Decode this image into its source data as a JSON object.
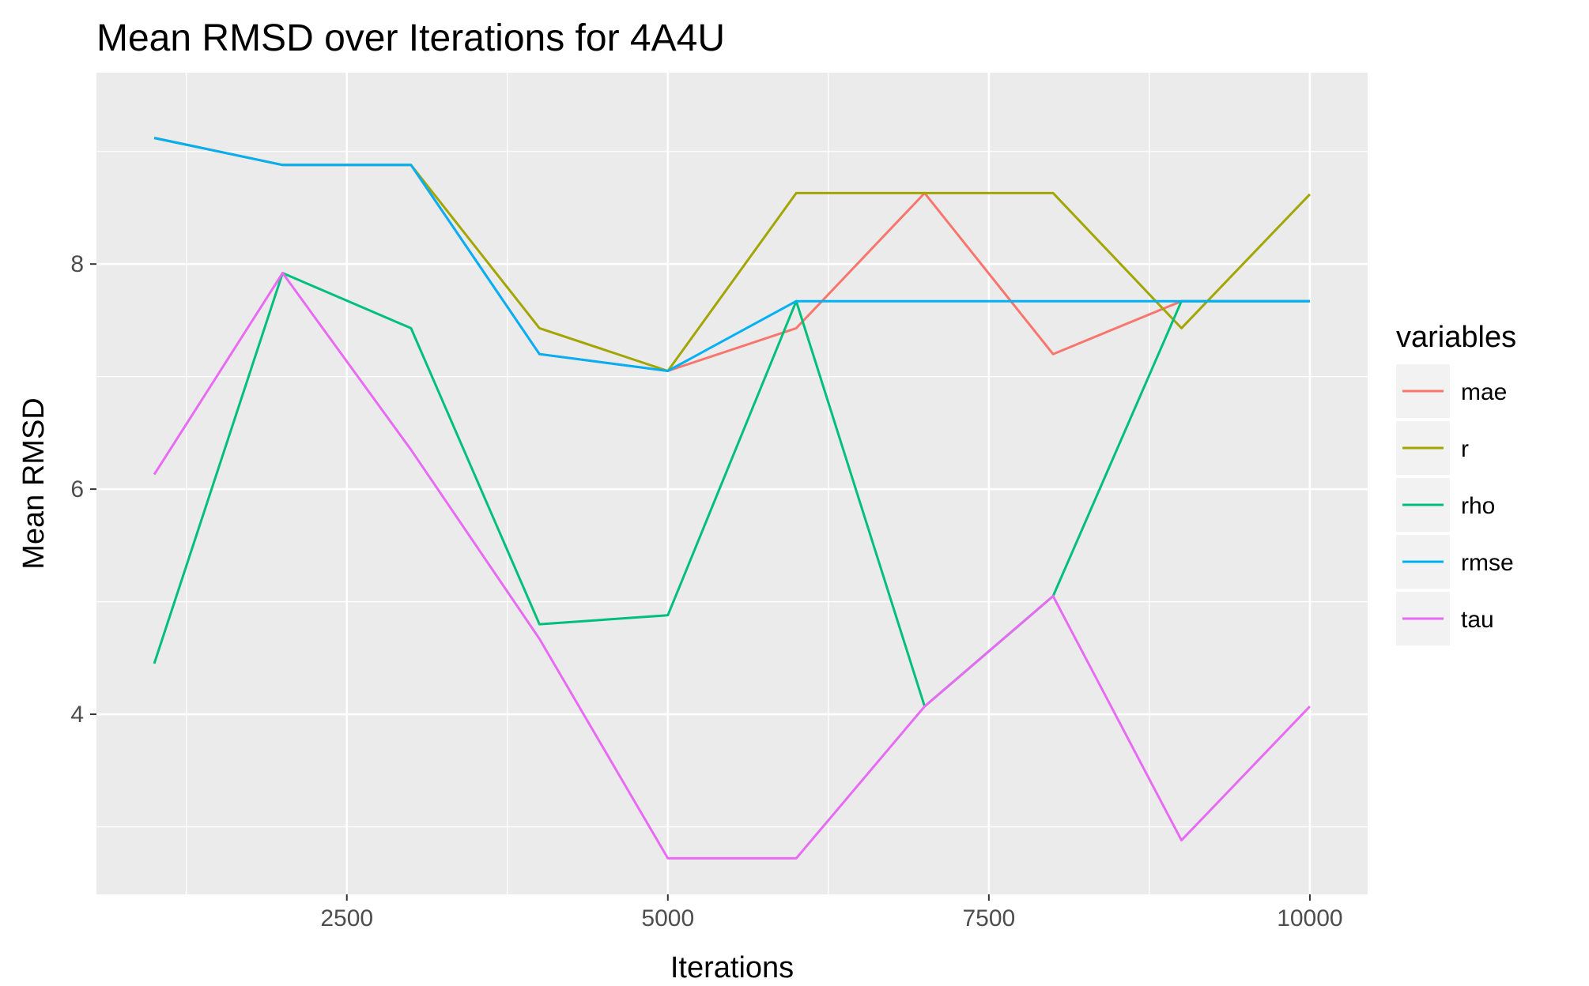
{
  "chart_data": {
    "type": "line",
    "title": "Mean RMSD over Iterations for 4A4U",
    "xlabel": "Iterations",
    "ylabel": "Mean RMSD",
    "xlim": [
      550,
      10450
    ],
    "ylim": [
      2.4,
      9.7
    ],
    "x_ticks": [
      2500,
      5000,
      7500,
      10000
    ],
    "y_ticks": [
      4,
      6,
      8
    ],
    "grid": true,
    "legend": {
      "title": "variables",
      "position": "right"
    },
    "x": [
      1000,
      2000,
      3000,
      4000,
      5000,
      6000,
      7000,
      8000,
      9000,
      10000
    ],
    "series": [
      {
        "name": "mae",
        "color": "#F8766D",
        "values": [
          9.12,
          8.88,
          8.88,
          7.2,
          7.05,
          7.43,
          8.63,
          7.2,
          7.67,
          7.67
        ]
      },
      {
        "name": "r",
        "color": "#A3A500",
        "values": [
          9.12,
          8.88,
          8.88,
          7.43,
          7.05,
          8.63,
          8.63,
          8.63,
          7.43,
          8.62
        ]
      },
      {
        "name": "rho",
        "color": "#00BF7D",
        "values": [
          4.45,
          7.92,
          7.43,
          4.8,
          4.88,
          7.67,
          4.07,
          5.05,
          7.67,
          7.67
        ]
      },
      {
        "name": "rmse",
        "color": "#00B0F6",
        "values": [
          9.12,
          8.88,
          8.88,
          7.2,
          7.05,
          7.67,
          7.67,
          7.67,
          7.67,
          7.67
        ]
      },
      {
        "name": "tau",
        "color": "#E76BF3",
        "values": [
          6.13,
          7.92,
          6.35,
          4.67,
          2.72,
          2.72,
          4.07,
          5.05,
          2.88,
          4.07
        ]
      }
    ]
  }
}
